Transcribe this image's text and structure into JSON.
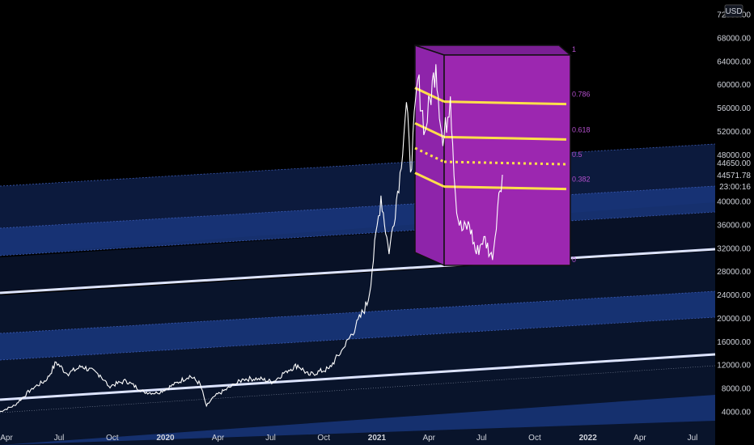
{
  "chart_data": {
    "type": "line",
    "currency": "USD",
    "price_axis": {
      "labels": [
        "72000.00",
        "68000.00",
        "64000.00",
        "60000.00",
        "56000.00",
        "52000.00",
        "48000.00",
        "44650.00",
        "44571.78",
        "23:00:16",
        "40000.00",
        "36000.00",
        "32000.00",
        "28000.00",
        "24000.00",
        "20000.00",
        "16000.00",
        "12000.00",
        "8000.00",
        "4000.00"
      ],
      "ticks": [
        72000,
        68000,
        64000,
        60000,
        56000,
        52000,
        48000,
        40000,
        36000,
        32000,
        28000,
        24000,
        20000,
        16000,
        12000,
        8000,
        4000
      ],
      "ylim": [
        3000,
        74000
      ],
      "last_price": "44571.78",
      "countdown": "23:00:16",
      "marker_price": "44650.00"
    },
    "time_axis": {
      "labels": [
        "Apr",
        "Jul",
        "Oct",
        "2020",
        "Apr",
        "Jul",
        "Oct",
        "2021",
        "Apr",
        "Jul",
        "Oct",
        "2022",
        "Apr",
        "Jul"
      ],
      "tick_dates": [
        "2019-04-01",
        "2019-07-01",
        "2019-10-01",
        "2020-01-01",
        "2020-04-01",
        "2020-07-01",
        "2020-10-01",
        "2021-01-01",
        "2021-04-01",
        "2021-07-01",
        "2021-10-01",
        "2022-01-01",
        "2022-04-01",
        "2022-07-01"
      ],
      "xlim": [
        "2019-03-20",
        "2022-08-15"
      ]
    },
    "series": [
      {
        "dates": [
          "2019-03-20",
          "2019-04-15",
          "2019-05-15",
          "2019-06-10",
          "2019-06-26",
          "2019-07-15",
          "2019-08-10",
          "2019-09-10",
          "2019-09-25",
          "2019-10-25",
          "2019-11-25",
          "2019-12-18",
          "2020-01-15",
          "2020-02-12",
          "2020-03-01",
          "2020-03-12",
          "2020-03-25",
          "2020-04-30",
          "2020-05-15",
          "2020-06-10",
          "2020-07-05",
          "2020-07-28",
          "2020-08-17",
          "2020-09-05",
          "2020-10-10",
          "2020-11-05",
          "2020-11-25",
          "2020-12-17",
          "2021-01-08",
          "2021-01-22",
          "2021-02-10",
          "2021-02-21",
          "2021-02-28",
          "2021-03-13",
          "2021-03-25",
          "2021-04-13",
          "2021-04-25",
          "2021-05-08",
          "2021-05-12",
          "2021-05-19",
          "2021-05-28",
          "2021-06-10",
          "2021-06-22",
          "2021-07-05",
          "2021-07-20",
          "2021-07-31",
          "2021-08-06"
        ],
        "values": [
          4000,
          5100,
          8000,
          9500,
          12500,
          10500,
          11800,
          10300,
          8400,
          9300,
          7400,
          7200,
          8600,
          10200,
          8800,
          5000,
          6600,
          8700,
          9600,
          9700,
          9100,
          11000,
          12000,
          10300,
          11400,
          15000,
          18500,
          23000,
          41000,
          31000,
          45000,
          57000,
          45000,
          61000,
          52000,
          63500,
          49500,
          58000,
          50000,
          38000,
          35000,
          36000,
          31000,
          34000,
          30000,
          41500,
          44571.78
        ]
      }
    ],
    "fibonacci": {
      "levels": [
        {
          "label": "1",
          "value": 1
        },
        {
          "label": "0.786",
          "value": 0.786
        },
        {
          "label": "0.618",
          "value": 0.618
        },
        {
          "label": "0.5",
          "value": 0.5
        },
        {
          "label": "0.382",
          "value": 0.382
        },
        {
          "label": "0",
          "value": 0
        }
      ],
      "box_color": "#9c27b0",
      "level_color": "#ffe04a"
    },
    "colors": {
      "background": "#000000",
      "line": "#ffffff",
      "channel_fill": "#0e1e48",
      "channel_fill_strong": "#18357a",
      "trendline": "#dde4ff",
      "axis_text": "#d1d4dc",
      "fib_label": "#b24fcc"
    }
  }
}
